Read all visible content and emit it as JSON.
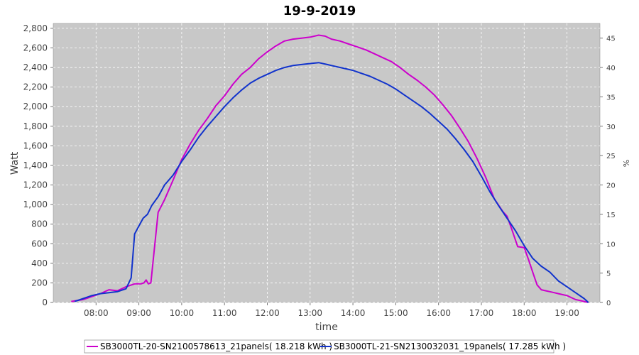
{
  "chart_data": {
    "type": "line",
    "title": "19-9-2019",
    "xlabel": "time",
    "ylabel": "Watt",
    "y2label": "%",
    "xlim": [
      7.0,
      19.77
    ],
    "ylim": [
      0,
      2850
    ],
    "y2lim": [
      0,
      47.5
    ],
    "x_ticks": [
      "08:00",
      "09:00",
      "10:00",
      "11:00",
      "12:00",
      "13:00",
      "14:00",
      "15:00",
      "16:00",
      "17:00",
      "18:00",
      "19:00"
    ],
    "y_ticks": [
      "0",
      "200",
      "400",
      "600",
      "800",
      "1,000",
      "1,200",
      "1,400",
      "1,600",
      "1,800",
      "2,000",
      "2,200",
      "2,400",
      "2,600",
      "2,800"
    ],
    "y2_ticks": [
      "0",
      "5",
      "10",
      "15",
      "20",
      "25",
      "30",
      "35",
      "40",
      "45"
    ],
    "grid": true,
    "legend_position": "bottom",
    "series": [
      {
        "name": "SB3000TL-20-SN2100578613_21panels",
        "legend_label": "SB3000TL-20-SN2100578613_21panels( 18.218 kWh )",
        "color": "#cc00cc",
        "x": [
          7.42,
          7.7,
          7.9,
          8.1,
          8.3,
          8.5,
          8.7,
          8.9,
          9.05,
          9.12,
          9.17,
          9.22,
          9.28,
          9.45,
          9.6,
          9.8,
          10.0,
          10.2,
          10.4,
          10.6,
          10.8,
          11.0,
          11.2,
          11.4,
          11.6,
          11.8,
          12.0,
          12.2,
          12.4,
          12.6,
          12.8,
          13.0,
          13.2,
          13.35,
          13.5,
          13.7,
          13.9,
          14.1,
          14.3,
          14.5,
          14.7,
          14.9,
          15.1,
          15.3,
          15.5,
          15.7,
          15.9,
          16.1,
          16.3,
          16.5,
          16.7,
          16.9,
          17.1,
          17.3,
          17.5,
          17.6,
          17.7,
          17.85,
          18.0,
          18.1,
          18.2,
          18.3,
          18.4,
          18.5,
          18.6,
          18.7,
          18.8,
          18.9,
          19.0,
          19.1,
          19.2,
          19.3,
          19.4,
          19.5
        ],
        "y": [
          10,
          30,
          60,
          90,
          130,
          120,
          160,
          190,
          190,
          200,
          230,
          190,
          200,
          920,
          1050,
          1250,
          1460,
          1620,
          1760,
          1880,
          2010,
          2110,
          2230,
          2330,
          2400,
          2490,
          2560,
          2620,
          2670,
          2690,
          2700,
          2710,
          2730,
          2720,
          2690,
          2670,
          2640,
          2610,
          2580,
          2540,
          2500,
          2460,
          2400,
          2330,
          2270,
          2200,
          2120,
          2020,
          1910,
          1780,
          1640,
          1470,
          1280,
          1060,
          930,
          880,
          760,
          570,
          560,
          440,
          310,
          180,
          130,
          120,
          110,
          100,
          90,
          80,
          70,
          50,
          30,
          20,
          10,
          0
        ]
      },
      {
        "name": "SB3000TL-21-SN2130032031_19panels",
        "legend_label": "SB3000TL-21-SN2130032031_19panels( 17.285 kWh )",
        "color": "#1133cc",
        "x": [
          7.5,
          7.7,
          7.9,
          8.1,
          8.3,
          8.5,
          8.7,
          8.82,
          8.9,
          9.0,
          9.1,
          9.2,
          9.3,
          9.45,
          9.6,
          9.8,
          10.0,
          10.2,
          10.4,
          10.6,
          10.8,
          11.0,
          11.2,
          11.4,
          11.6,
          11.8,
          12.0,
          12.2,
          12.4,
          12.6,
          12.8,
          13.0,
          13.2,
          13.4,
          13.6,
          13.8,
          14.0,
          14.2,
          14.4,
          14.6,
          14.8,
          15.0,
          15.2,
          15.4,
          15.6,
          15.8,
          16.0,
          16.2,
          16.4,
          16.6,
          16.8,
          17.0,
          17.2,
          17.4,
          17.6,
          17.8,
          18.0,
          18.2,
          18.4,
          18.6,
          18.8,
          19.0,
          19.2,
          19.4,
          19.5
        ],
        "y": [
          10,
          40,
          70,
          90,
          100,
          110,
          140,
          250,
          700,
          780,
          860,
          900,
          990,
          1080,
          1200,
          1300,
          1440,
          1560,
          1690,
          1800,
          1900,
          2000,
          2090,
          2170,
          2240,
          2290,
          2330,
          2370,
          2400,
          2420,
          2430,
          2440,
          2450,
          2430,
          2410,
          2390,
          2370,
          2340,
          2310,
          2270,
          2230,
          2180,
          2120,
          2060,
          2000,
          1930,
          1850,
          1770,
          1670,
          1560,
          1440,
          1290,
          1130,
          990,
          860,
          730,
          580,
          450,
          370,
          310,
          220,
          160,
          100,
          40,
          0
        ]
      }
    ]
  }
}
